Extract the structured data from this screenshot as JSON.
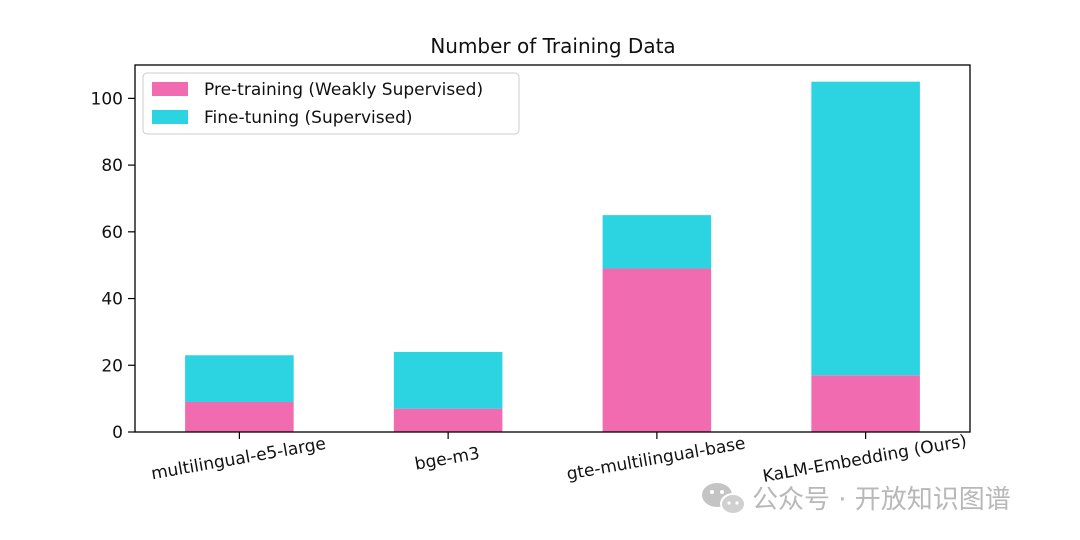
{
  "chart_data": {
    "type": "bar",
    "stacked": true,
    "title": "Number of Training Data",
    "xlabel": "",
    "ylabel": "",
    "categories": [
      "multilingual-e5-large",
      "bge-m3",
      "gte-multilingual-base",
      "KaLM-Embedding (Ours)"
    ],
    "series": [
      {
        "name": "Pre-training (Weakly Supervised)",
        "color": "#f06bb0",
        "values": [
          9,
          7,
          49,
          17
        ]
      },
      {
        "name": "Fine-tuning (Supervised)",
        "color": "#2bd4e0",
        "values": [
          14,
          17,
          16,
          88
        ]
      }
    ],
    "ylim": [
      0,
      110
    ],
    "yticks": [
      0,
      20,
      40,
      60,
      80,
      100
    ],
    "legend_position": "top-left",
    "grid": false
  },
  "watermark": {
    "text": "公众号 · 开放知识图谱",
    "icon": "wechat-icon"
  }
}
